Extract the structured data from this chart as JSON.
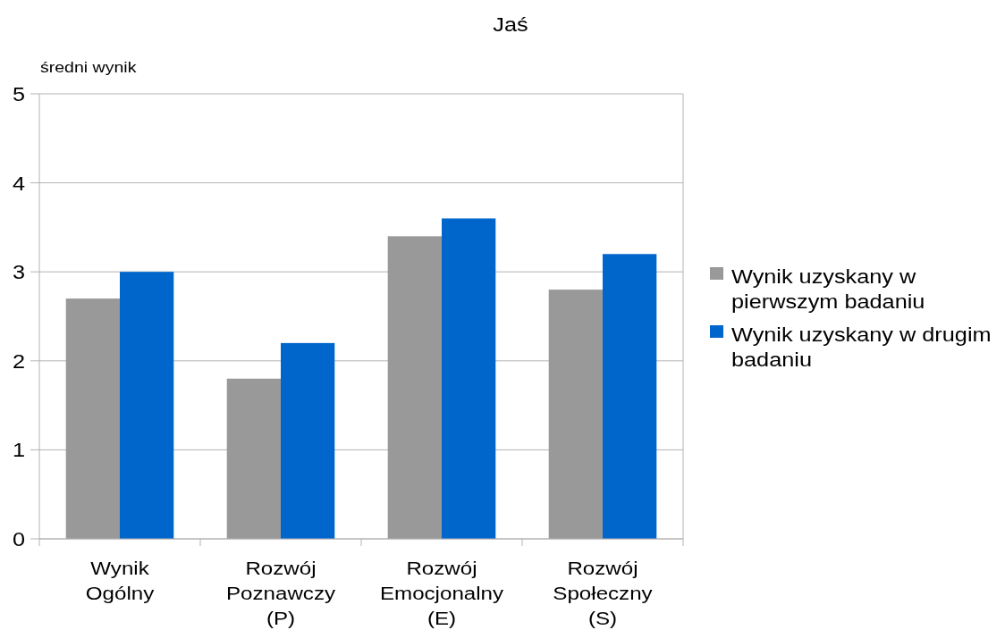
{
  "chart_data": {
    "type": "bar",
    "title": "Jaś",
    "ylabel": "średni wynik",
    "categories": [
      "Wynik Ogólny",
      "Rozwój Poznawczy (P)",
      "Rozwój Emocjonalny (E)",
      "Rozwój Społeczny (S)"
    ],
    "series": [
      {
        "name": "Wynik uzyskany w pierwszym badaniu",
        "color": "#999999",
        "values": [
          2.7,
          1.8,
          3.4,
          2.8
        ]
      },
      {
        "name": "Wynik uzyskany w drugim badaniu",
        "color": "#0066cc",
        "values": [
          3.0,
          2.2,
          3.6,
          3.2
        ]
      }
    ],
    "ylim": [
      0,
      5
    ],
    "yticks": [
      0,
      1,
      2,
      3,
      4,
      5
    ],
    "grid": "y",
    "legend": "right"
  }
}
